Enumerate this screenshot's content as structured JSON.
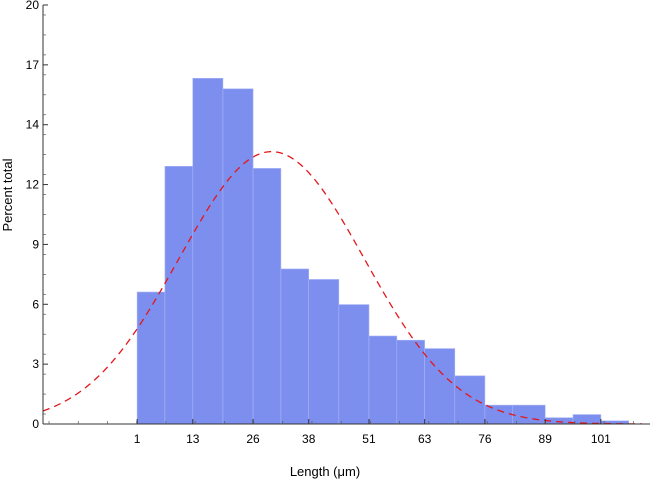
{
  "chart_data": {
    "type": "bar",
    "title": "",
    "xlabel": "Length (μm)",
    "ylabel": "Percent total",
    "x_ticks": [
      "1",
      "13",
      "26",
      "38",
      "51",
      "63",
      "76",
      "89",
      "101"
    ],
    "y_ticks": [
      "0",
      "3",
      "6",
      "9",
      "12",
      "14",
      "17",
      "20"
    ],
    "ylim": [
      0,
      20
    ],
    "grid": false,
    "legend": "none",
    "bin_edges": [
      1,
      7,
      13,
      19.5,
      26,
      32,
      38,
      44.5,
      51,
      57,
      63,
      69.5,
      76,
      82,
      89,
      95,
      101,
      107
    ],
    "values": [
      6.3,
      12.3,
      16.5,
      16.0,
      12.2,
      7.4,
      6.9,
      5.7,
      4.2,
      4.0,
      3.6,
      2.3,
      0.9,
      0.9,
      0.3,
      0.45,
      0.15
    ],
    "bar_color": "#7d8fee",
    "curve": {
      "style": "dashed",
      "color": "#e3171b",
      "mean": 30,
      "sd": 20,
      "peak": 13.0
    }
  }
}
